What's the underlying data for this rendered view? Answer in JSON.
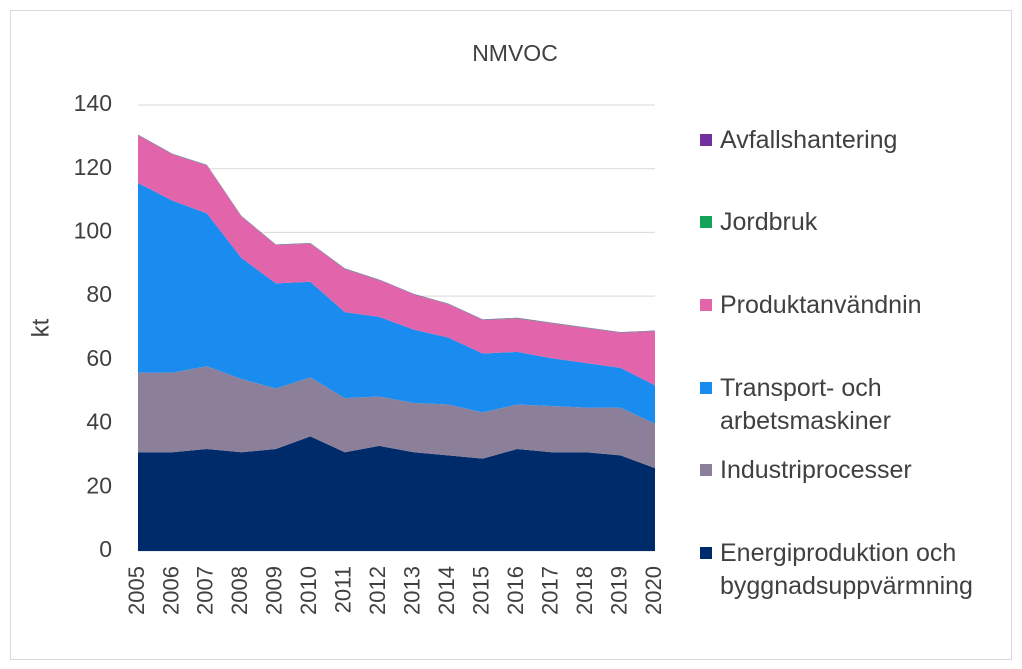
{
  "chart_data": {
    "type": "stacked_area",
    "title": "NMVOC",
    "ylabel": "kt",
    "categories": [
      "2005",
      "2006",
      "2007",
      "2008",
      "2009",
      "2010",
      "2011",
      "2012",
      "2013",
      "2014",
      "2015",
      "2016",
      "2017",
      "2018",
      "2019",
      "2020"
    ],
    "ylim": [
      0,
      140
    ],
    "yticks": [
      0,
      20,
      40,
      60,
      80,
      100,
      120,
      140
    ],
    "grid": true,
    "series": [
      {
        "name": "Energiproduktion och byggnadsuppvärmning",
        "color": "#002b6a",
        "values": [
          31,
          31,
          32,
          31,
          32,
          36,
          31,
          33,
          31,
          30,
          29,
          32,
          31,
          31,
          30,
          26
        ]
      },
      {
        "name": "Industriprocesser",
        "color": "#8c7f99",
        "values": [
          25,
          25,
          26,
          23,
          19,
          18.5,
          17,
          15.5,
          15.5,
          16,
          14.5,
          14,
          14.5,
          14,
          15,
          14
        ]
      },
      {
        "name": "Transport- och arbetsmaskiner",
        "color": "#1a8cf0",
        "values": [
          59.5,
          54,
          48,
          38,
          33,
          30,
          27,
          25,
          23,
          21,
          18.5,
          16.5,
          15,
          14,
          12.5,
          12
        ]
      },
      {
        "name": "Produktanvändnin",
        "color": "#e264ab",
        "values": [
          15,
          14.5,
          15,
          13,
          12,
          12,
          13.5,
          11.5,
          11,
          10.5,
          10.5,
          10.5,
          11,
          11,
          11,
          17
        ]
      },
      {
        "name": "Jordbruk",
        "color": "#13a45a",
        "values": [
          0.1,
          0.1,
          0.1,
          0.1,
          0.1,
          0.1,
          0.1,
          0.1,
          0.1,
          0.1,
          0.1,
          0.1,
          0.1,
          0.1,
          0.1,
          0.1
        ]
      },
      {
        "name": "Avfallshantering",
        "color": "#7030a0",
        "values": [
          0.1,
          0.1,
          0.1,
          0.1,
          0.1,
          0.1,
          0.1,
          0.1,
          0.1,
          0.1,
          0.1,
          0.1,
          0.1,
          0.1,
          0.1,
          0.1
        ]
      }
    ]
  }
}
